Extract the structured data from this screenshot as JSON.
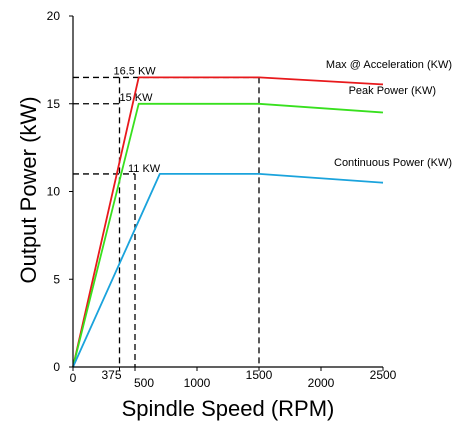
{
  "chart_data": {
    "type": "line",
    "title": "",
    "xlabel": "Spindle Speed (RPM)",
    "ylabel": "Output Power (kW)",
    "xlim": [
      0,
      2500
    ],
    "ylim": [
      0,
      20
    ],
    "x_ticks": [
      0,
      375,
      500,
      1000,
      1500,
      2000,
      2500
    ],
    "x_tick_labels": [
      "0",
      "375",
      "500",
      "1000",
      "1500",
      "2000",
      "2500"
    ],
    "y_ticks": [
      0,
      5,
      10,
      15,
      20
    ],
    "y_tick_labels": [
      "0",
      "5",
      "10",
      "15",
      "20"
    ],
    "grid": false,
    "series": [
      {
        "name": "Max @ Acceleration (KW)",
        "color": "#e8191c",
        "points": [
          [
            0,
            0
          ],
          [
            530,
            16.5
          ],
          [
            1500,
            16.5
          ],
          [
            2500,
            16.1
          ]
        ]
      },
      {
        "name": "Peak Power (KW)",
        "color": "#38e01e",
        "points": [
          [
            0,
            0
          ],
          [
            530,
            15
          ],
          [
            1500,
            15
          ],
          [
            2500,
            14.5
          ]
        ]
      },
      {
        "name": "Continuous Power (KW)",
        "color": "#1aa3dc",
        "points": [
          [
            0,
            0
          ],
          [
            700,
            11
          ],
          [
            1500,
            11
          ],
          [
            2500,
            10.5
          ]
        ]
      }
    ],
    "annotations": [
      {
        "text": "16.5 KW",
        "x": 375,
        "y": 16.5
      },
      {
        "text": "15 KW",
        "x": 375,
        "y": 15
      },
      {
        "text": "11 KW",
        "x": 500,
        "y": 11
      }
    ],
    "reference_lines": {
      "horizontal": [
        {
          "y": 16.5,
          "x_end": 1500
        },
        {
          "y": 15,
          "x_end": 375
        },
        {
          "y": 11,
          "x_end": 500
        }
      ],
      "vertical": [
        {
          "x": 375,
          "y_top": 16.5
        },
        {
          "x": 500,
          "y_top": 11
        },
        {
          "x": 1500,
          "y_top": 16.5
        }
      ]
    }
  }
}
